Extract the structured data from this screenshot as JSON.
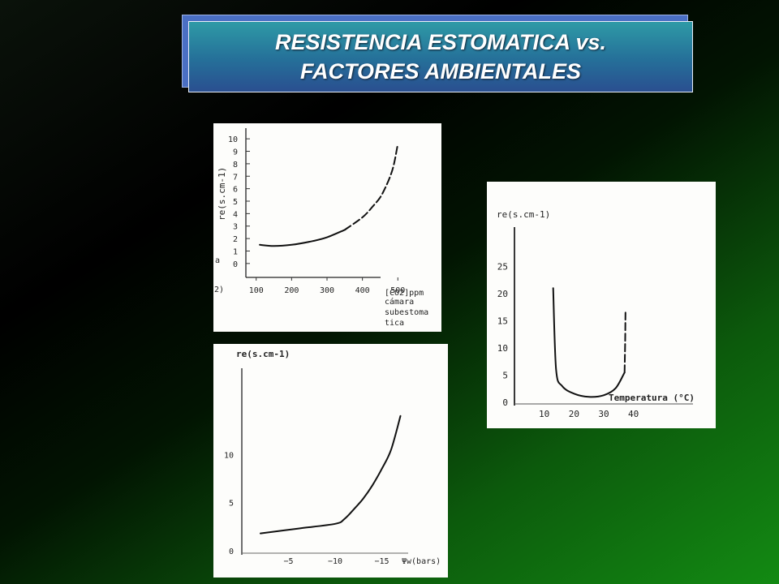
{
  "slide": {
    "title_line1": "RESISTENCIA ESTOMATICA vs.",
    "title_line2": "FACTORES AMBIENTALES"
  },
  "chart_data": [
    {
      "type": "line",
      "ylabel": "re(s.cm-1)",
      "xlabel_lines": [
        "[CO2]ppm",
        "cámara",
        "subestoma",
        "tica"
      ],
      "left_fragments": [
        "a",
        "2)"
      ],
      "xticks": [
        100,
        200,
        300,
        400,
        500
      ],
      "yticks": [
        0,
        1,
        2,
        3,
        4,
        5,
        6,
        7,
        8,
        9,
        10
      ],
      "xlim": [
        80,
        520
      ],
      "ylim": [
        -0.4,
        10.4
      ],
      "series": [
        {
          "style": "solid",
          "x": [
            110,
            150,
            200,
            260,
            300,
            350
          ],
          "y": [
            1.5,
            1.4,
            1.5,
            1.8,
            2.1,
            2.7
          ]
        },
        {
          "style": "dashed",
          "x": [
            350,
            400,
            430,
            450,
            465,
            480,
            490,
            500
          ],
          "y": [
            2.7,
            3.7,
            4.6,
            5.3,
            6.1,
            7.1,
            8.1,
            9.6
          ]
        }
      ]
    },
    {
      "type": "line",
      "ylabel": "re(s.cm-1)",
      "xlabel": "Temperatura (°C)",
      "xticks": [
        "10",
        "20",
        "30",
        "40"
      ],
      "xtick_values": [
        10,
        20,
        30,
        40
      ],
      "yticks": [
        0,
        5,
        10,
        15,
        20,
        25
      ],
      "xlim": [
        0,
        60
      ],
      "ylim": [
        0,
        30
      ],
      "series": [
        {
          "style": "solid",
          "x": [
            13,
            14,
            16,
            20,
            25,
            30,
            34,
            37
          ],
          "y": [
            21,
            6,
            3,
            1.6,
            1,
            1.3,
            2.6,
            5.5
          ]
        },
        {
          "style": "dashed",
          "x": [
            37,
            37.2,
            37.3
          ],
          "y": [
            5.5,
            11,
            16.5
          ]
        }
      ]
    },
    {
      "type": "line",
      "ylabel": "re(s.cm-1)",
      "xlabel": "Ψw(bars)",
      "xticks": [
        "−5",
        "−10",
        "−15"
      ],
      "xtick_values": [
        -5,
        -10,
        -15
      ],
      "yticks": [
        0,
        5,
        10
      ],
      "xlim": [
        0,
        -20
      ],
      "ylim": [
        0,
        16
      ],
      "series": [
        {
          "style": "solid",
          "x": [
            -2,
            -6,
            -10,
            -11,
            -12,
            -13,
            -14,
            -15,
            -16,
            -17
          ],
          "y": [
            1.8,
            2.3,
            2.8,
            3.3,
            4.3,
            5.4,
            6.8,
            8.5,
            10.5,
            14
          ]
        }
      ]
    }
  ]
}
